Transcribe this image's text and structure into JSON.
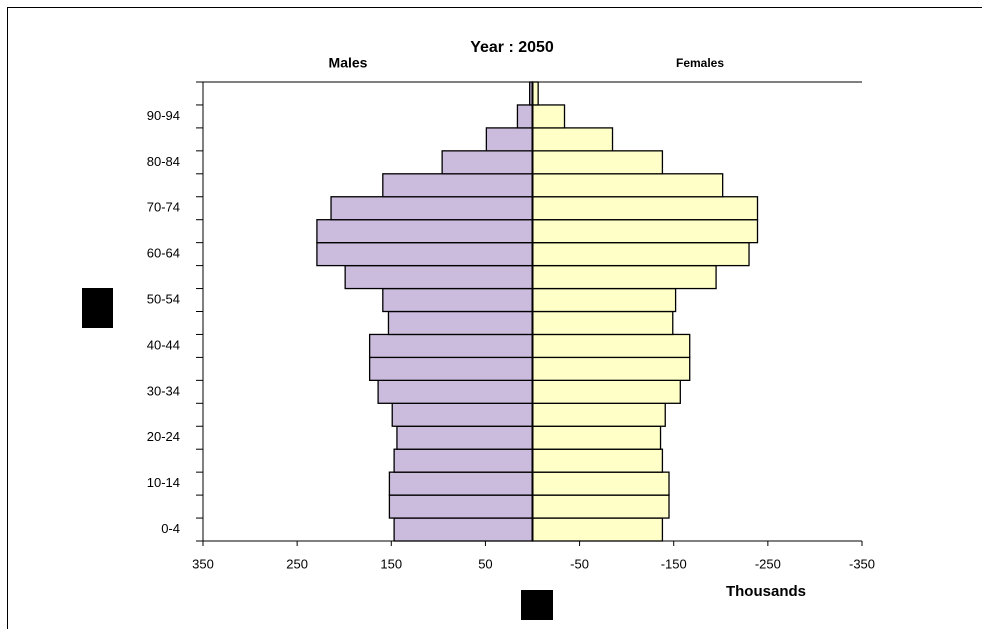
{
  "chart_data": {
    "type": "pyramid",
    "title": "Year : 2050",
    "x_label": "Thousands",
    "categories": [
      "0-4",
      null,
      "10-14",
      null,
      "20-24",
      null,
      "30-34",
      null,
      "40-44",
      null,
      "50-54",
      null,
      "60-64",
      null,
      "70-74",
      null,
      "80-84",
      null,
      "90-94",
      null
    ],
    "series": [
      {
        "name": "Males",
        "color": "#cbbbdd",
        "values": [
          147,
          152,
          152,
          147,
          144,
          149,
          164,
          173,
          173,
          153,
          159,
          199,
          229,
          229,
          214,
          159,
          96,
          49,
          16,
          3
        ]
      },
      {
        "name": "Females",
        "color": "#ffffc8",
        "values": [
          -138,
          -145,
          -145,
          -138,
          -136,
          -141,
          -157,
          -167,
          -167,
          -149,
          -152,
          -195,
          -230,
          -239,
          -239,
          -202,
          -138,
          -85,
          -34,
          -6
        ]
      }
    ],
    "xlim": [
      350,
      -350
    ],
    "xticks": [
      350,
      250,
      150,
      50,
      -50,
      -150,
      -250,
      -350
    ]
  }
}
